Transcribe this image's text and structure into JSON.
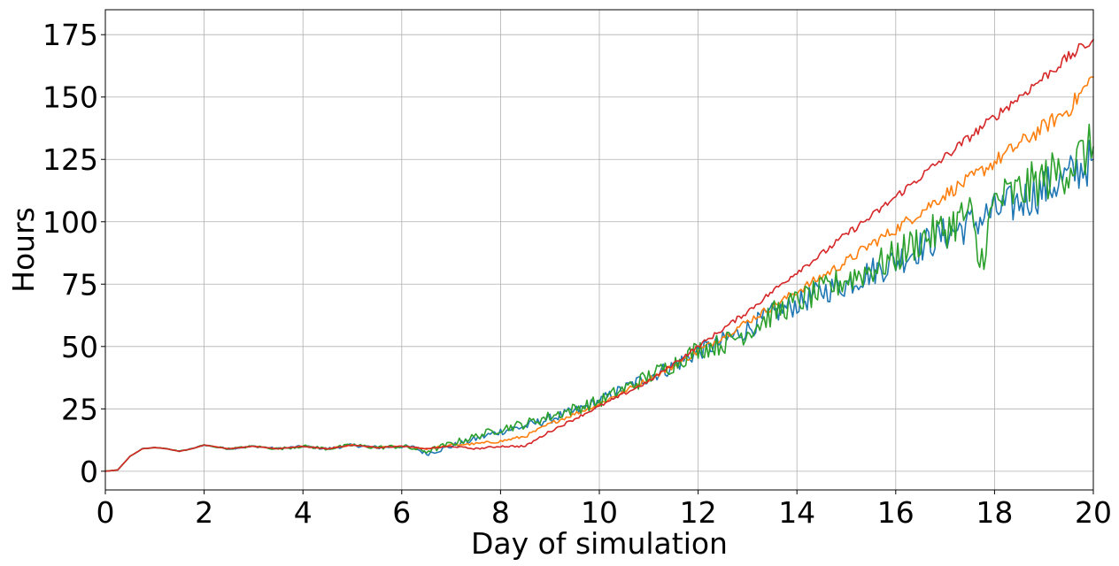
{
  "chart_data": {
    "type": "line",
    "xlabel": "Day of simulation",
    "ylabel": "Hours",
    "xlim": [
      0,
      20
    ],
    "ylim": [
      -7.5,
      185
    ],
    "xticks": [
      0,
      2,
      4,
      6,
      8,
      10,
      12,
      14,
      16,
      18,
      20
    ],
    "yticks": [
      0,
      25,
      50,
      75,
      100,
      125,
      150,
      175
    ],
    "grid": true,
    "legend": "none",
    "series": [
      {
        "color": "#1f77b4",
        "points": [
          [
            0,
            0
          ],
          [
            0.25,
            0.5
          ],
          [
            0.5,
            6
          ],
          [
            0.75,
            9
          ],
          [
            1,
            9.5
          ],
          [
            1.25,
            9
          ],
          [
            1.5,
            8
          ],
          [
            1.75,
            9
          ],
          [
            2,
            10.5
          ],
          [
            2.5,
            9
          ],
          [
            3,
            10
          ],
          [
            3.5,
            9
          ],
          [
            4,
            10
          ],
          [
            4.5,
            9
          ],
          [
            5,
            10.5
          ],
          [
            5.5,
            9.5
          ],
          [
            6,
            10
          ],
          [
            6.25,
            9.5
          ],
          [
            6.5,
            7
          ],
          [
            7,
            10
          ],
          [
            7.5,
            13
          ],
          [
            8,
            16
          ],
          [
            8.5,
            18
          ],
          [
            9,
            21
          ],
          [
            9.5,
            24
          ],
          [
            10,
            28
          ],
          [
            10.5,
            33
          ],
          [
            11,
            38
          ],
          [
            11.5,
            42
          ],
          [
            12,
            48
          ],
          [
            12.5,
            52
          ],
          [
            13,
            57
          ],
          [
            13.5,
            63
          ],
          [
            14,
            67
          ],
          [
            14.5,
            72
          ],
          [
            15,
            75
          ],
          [
            15.5,
            80
          ],
          [
            16,
            84
          ],
          [
            16.5,
            90
          ],
          [
            17,
            95
          ],
          [
            17.5,
            99
          ],
          [
            18,
            104
          ],
          [
            18.5,
            108
          ],
          [
            19,
            113
          ],
          [
            19.5,
            118
          ],
          [
            20,
            125
          ]
        ]
      },
      {
        "color": "#ff7f0e",
        "points": [
          [
            0,
            0
          ],
          [
            0.25,
            0.5
          ],
          [
            0.5,
            6
          ],
          [
            0.75,
            9
          ],
          [
            1,
            9.5
          ],
          [
            1.25,
            9
          ],
          [
            1.5,
            8
          ],
          [
            1.75,
            9
          ],
          [
            2,
            10.5
          ],
          [
            2.5,
            9
          ],
          [
            3,
            10
          ],
          [
            3.5,
            9
          ],
          [
            4,
            10
          ],
          [
            4.5,
            9
          ],
          [
            5,
            10.5
          ],
          [
            5.5,
            9.5
          ],
          [
            6,
            10
          ],
          [
            6.5,
            9
          ],
          [
            7,
            10.5
          ],
          [
            7.5,
            11
          ],
          [
            8,
            12
          ],
          [
            8.5,
            14
          ],
          [
            9,
            19
          ],
          [
            9.5,
            23
          ],
          [
            10,
            27
          ],
          [
            10.5,
            32
          ],
          [
            11,
            37
          ],
          [
            11.5,
            42
          ],
          [
            12,
            48
          ],
          [
            12.5,
            54
          ],
          [
            13,
            60
          ],
          [
            13.5,
            66
          ],
          [
            14,
            72
          ],
          [
            14.5,
            78
          ],
          [
            15,
            84
          ],
          [
            15.5,
            91
          ],
          [
            16,
            97
          ],
          [
            16.5,
            104
          ],
          [
            17,
            111
          ],
          [
            17.5,
            117
          ],
          [
            18,
            124
          ],
          [
            18.5,
            131
          ],
          [
            19,
            138
          ],
          [
            19.5,
            145
          ],
          [
            20,
            158
          ]
        ]
      },
      {
        "color": "#2ca02c",
        "points": [
          [
            0,
            0
          ],
          [
            0.25,
            0.5
          ],
          [
            0.5,
            6
          ],
          [
            0.75,
            9
          ],
          [
            1,
            9.5
          ],
          [
            1.25,
            9
          ],
          [
            1.5,
            8
          ],
          [
            1.75,
            9
          ],
          [
            2,
            10.5
          ],
          [
            2.5,
            9
          ],
          [
            3,
            10
          ],
          [
            3.5,
            9
          ],
          [
            4,
            10
          ],
          [
            4.5,
            9
          ],
          [
            5,
            10.5
          ],
          [
            5.5,
            9.5
          ],
          [
            6,
            10
          ],
          [
            6.5,
            8
          ],
          [
            7,
            11
          ],
          [
            7.5,
            14
          ],
          [
            8,
            17
          ],
          [
            8.5,
            19
          ],
          [
            9,
            22
          ],
          [
            9.5,
            25
          ],
          [
            10,
            28
          ],
          [
            10.5,
            33
          ],
          [
            11,
            38
          ],
          [
            11.5,
            43
          ],
          [
            12,
            49
          ],
          [
            12.5,
            51
          ],
          [
            13,
            56
          ],
          [
            13.5,
            63
          ],
          [
            14,
            68
          ],
          [
            14.5,
            72
          ],
          [
            15,
            77
          ],
          [
            15.5,
            81
          ],
          [
            16,
            86
          ],
          [
            16.5,
            93
          ],
          [
            17,
            97
          ],
          [
            17.5,
            104
          ],
          [
            17.7,
            82
          ],
          [
            18,
            108
          ],
          [
            18.5,
            112
          ],
          [
            19,
            117
          ],
          [
            19.5,
            122
          ],
          [
            20,
            130
          ]
        ]
      },
      {
        "color": "#d62728",
        "points": [
          [
            0,
            0
          ],
          [
            0.25,
            0.5
          ],
          [
            0.5,
            6
          ],
          [
            0.75,
            9
          ],
          [
            1,
            9.5
          ],
          [
            1.25,
            9
          ],
          [
            1.5,
            8
          ],
          [
            1.75,
            9
          ],
          [
            2,
            10.5
          ],
          [
            2.5,
            9
          ],
          [
            3,
            10
          ],
          [
            3.5,
            9
          ],
          [
            4,
            10
          ],
          [
            4.5,
            9
          ],
          [
            5,
            10.5
          ],
          [
            5.5,
            9.5
          ],
          [
            6,
            10
          ],
          [
            6.5,
            9
          ],
          [
            7,
            10
          ],
          [
            7.5,
            9
          ],
          [
            8,
            10
          ],
          [
            8.5,
            10
          ],
          [
            9,
            16
          ],
          [
            9.5,
            21
          ],
          [
            10,
            26
          ],
          [
            10.5,
            31
          ],
          [
            11,
            36
          ],
          [
            11.5,
            43
          ],
          [
            12,
            50
          ],
          [
            12.5,
            57
          ],
          [
            13,
            64
          ],
          [
            13.5,
            72
          ],
          [
            14,
            80
          ],
          [
            14.5,
            87
          ],
          [
            15,
            95
          ],
          [
            15.5,
            102
          ],
          [
            16,
            110
          ],
          [
            16.5,
            118
          ],
          [
            17,
            126
          ],
          [
            17.5,
            134
          ],
          [
            18,
            142
          ],
          [
            18.5,
            150
          ],
          [
            19,
            158
          ],
          [
            19.5,
            166
          ],
          [
            20,
            173
          ]
        ]
      }
    ]
  }
}
